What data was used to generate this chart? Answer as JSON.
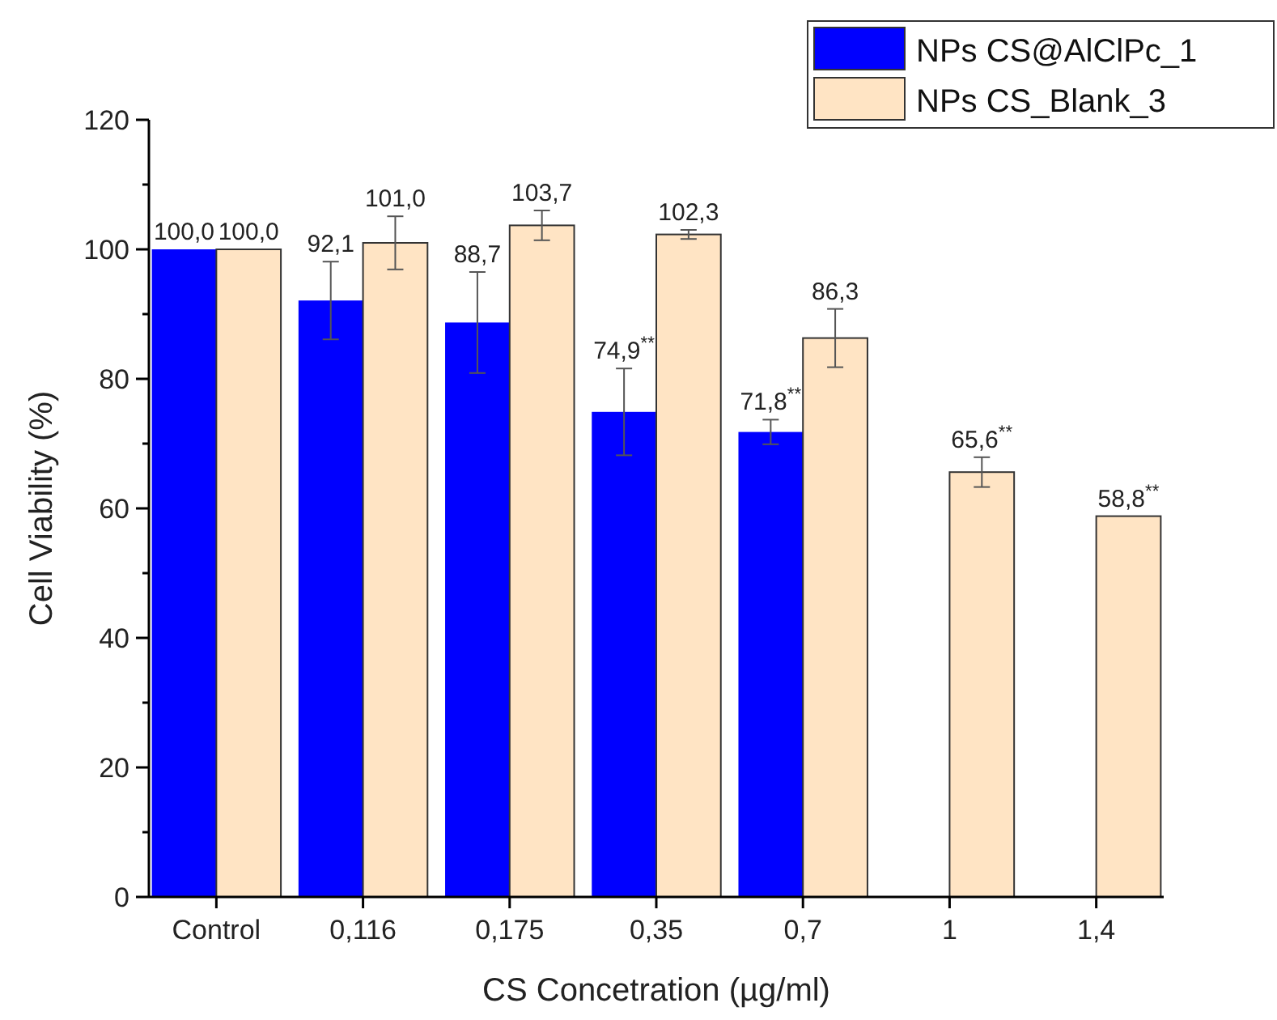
{
  "chart_data": {
    "type": "bar",
    "xlabel": "CS Concetration (µg/ml)",
    "ylabel": "Cell Viability (%)",
    "categories": [
      "Control",
      "0,116",
      "0,175",
      "0,35",
      "0,7",
      "1",
      "1,4"
    ],
    "series": [
      {
        "name": "NPs CS@AlClPc_1",
        "color": "#0000ff",
        "values": [
          100.0,
          92.1,
          88.7,
          74.9,
          71.8,
          null,
          null
        ],
        "errors": [
          null,
          6,
          7.8,
          6.7,
          1.9,
          null,
          null
        ],
        "value_labels": [
          "100,0",
          "92,1",
          "88,7",
          "74,9$^{**}$",
          "71,8$^{**}$",
          null,
          null
        ]
      },
      {
        "name": "NPs CS_Blank_3",
        "color": "#ffe4c4",
        "values": [
          100.0,
          101.0,
          103.7,
          102.3,
          86.3,
          65.6,
          58.8
        ],
        "errors": [
          null,
          4.1,
          2.3,
          0.7,
          4.5,
          2.3,
          null
        ],
        "value_labels": [
          "100,0",
          "101,0",
          "103,7",
          "102,3",
          "86,3",
          "65,6$^{**}$",
          "58,8$^{**}$"
        ]
      }
    ],
    "ylim": [
      0,
      120
    ],
    "yticks": [
      0,
      {
        "value": 10,
        "label": null
      },
      20,
      {
        "value": 30,
        "label": null
      },
      40,
      {
        "value": 50,
        "label": null
      },
      60,
      {
        "value": 70,
        "label": null
      },
      80,
      {
        "value": 90,
        "label": null
      },
      100,
      {
        "value": 110,
        "label": null
      },
      120
    ],
    "legend": "top right",
    "grid": false
  }
}
